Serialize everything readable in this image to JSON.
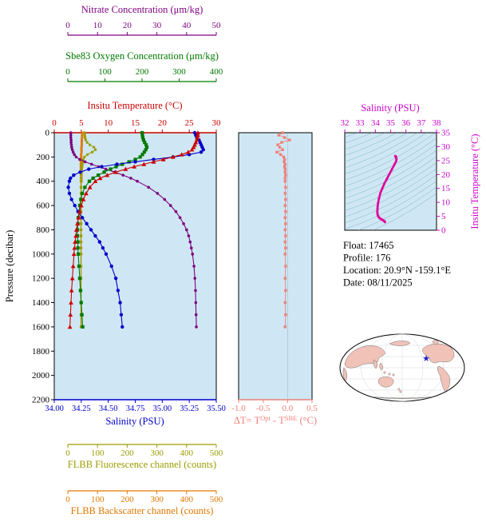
{
  "colors": {
    "nitrate": "#7d007d",
    "oxygen": "#007a00",
    "temperature": "#cc0000",
    "salinity": "#0000cc",
    "fluorescence": "#9c9c00",
    "backscatter": "#e07800",
    "delta": "#f08078",
    "ts_label": "#cc00cc",
    "ts_curve": "#e0009c",
    "contour": "#5f9ea8",
    "panel_bg": "#cfe7f4",
    "land": "#f0c2b8",
    "star": "#2020c0"
  },
  "axes": {
    "nitrate": {
      "title": "Nitrate Concentration (μm/kg)",
      "ticks": [
        0,
        10,
        20,
        30,
        40,
        50
      ]
    },
    "oxygen": {
      "title": "Sbe83 Oxygen Concentration (μm/kg)",
      "ticks": [
        0,
        100,
        200,
        300,
        400
      ]
    },
    "temperature": {
      "title": "Insitu Temperature (°C)",
      "ticks": [
        0,
        5,
        10,
        15,
        20,
        25,
        30
      ]
    },
    "pressure": {
      "title": "Pressure (decibar)",
      "ticks": [
        0,
        200,
        400,
        600,
        800,
        1000,
        1200,
        1400,
        1600,
        1800,
        2000,
        2200
      ]
    },
    "salinity": {
      "title": "Salinity (PSU)",
      "ticks": [
        "34.00",
        "34.25",
        "34.50",
        "34.75",
        "35.00",
        "35.25",
        "35.50"
      ]
    },
    "fluorescence": {
      "title": "FLBB Fluorescence channel (counts)",
      "ticks": [
        0,
        100,
        200,
        300,
        400,
        500
      ]
    },
    "backscatter": {
      "title": "FLBB Backscatter channel (counts)",
      "ticks": [
        0,
        100,
        200,
        300,
        400,
        500
      ]
    },
    "delta": {
      "title_parts": [
        "ΔT= T",
        "Opt",
        " - T",
        "SBE",
        " (°C)"
      ],
      "ticks": [
        "-1.0",
        "-0.5",
        "0.0",
        "0.5"
      ]
    },
    "ts_x": {
      "title": "Salinity (PSU)",
      "ticks": [
        32,
        33,
        34,
        35,
        36,
        37,
        38
      ]
    },
    "ts_y": {
      "title": "Insitu Temperature (°C)",
      "ticks": [
        0,
        5,
        10,
        15,
        20,
        25,
        30,
        35
      ]
    }
  },
  "info": {
    "lines": [
      {
        "id": "float",
        "label": "Float:",
        "value": "17465"
      },
      {
        "id": "profile",
        "label": "Profile:",
        "value": "176"
      },
      {
        "id": "location",
        "label": "Location:",
        "value": "20.9°N  -159.1°E"
      },
      {
        "id": "date",
        "label": "Date:",
        "value": "08/11/2025"
      }
    ]
  },
  "map": {
    "star_icon": "★"
  },
  "chart_data": {
    "type": "line",
    "description": "Argo float multi-panel vertical profiles vs pressure, deltaT panel, T-S diagram",
    "axis_ranges": {
      "temperature": [
        0,
        30
      ],
      "salinity": [
        34,
        35.5
      ],
      "oxygen": [
        0,
        400
      ],
      "nitrate": [
        0,
        50
      ],
      "flbb": [
        0,
        500
      ],
      "pressure": [
        0,
        2200
      ],
      "delta": [
        -1,
        0.5
      ],
      "ts_s": [
        32,
        38
      ],
      "ts_t": [
        0,
        35
      ]
    },
    "pressure_levels": [
      0,
      20,
      40,
      60,
      80,
      100,
      120,
      140,
      160,
      180,
      200,
      220,
      240,
      260,
      280,
      300,
      325,
      350,
      375,
      400,
      450,
      500,
      550,
      600,
      650,
      700,
      750,
      800,
      850,
      900,
      950,
      1000,
      1100,
      1200,
      1300,
      1400,
      1500,
      1600
    ],
    "profiles": {
      "temperature": {
        "label": "Insitu Temperature (°C)",
        "axis": "temperature",
        "marker": "triangle",
        "values": [
          26.6,
          26.6,
          26.5,
          26.4,
          26.2,
          26.0,
          25.8,
          25.5,
          24.8,
          23.6,
          22.0,
          20.2,
          18.4,
          16.6,
          14.8,
          13.2,
          11.4,
          9.8,
          8.5,
          7.6,
          6.6,
          5.9,
          5.4,
          5.0,
          4.7,
          4.5,
          4.3,
          4.1,
          4.0,
          3.85,
          3.75,
          3.65,
          3.5,
          3.35,
          3.2,
          3.1,
          3.0,
          2.9
        ]
      },
      "salinity": {
        "label": "Salinity (PSU)",
        "axis": "salinity",
        "marker": "circle",
        "values": [
          35.3,
          35.31,
          35.32,
          35.34,
          35.35,
          35.36,
          35.37,
          35.38,
          35.36,
          35.25,
          35.1,
          34.92,
          34.75,
          34.58,
          34.44,
          34.32,
          34.24,
          34.18,
          34.15,
          34.14,
          34.13,
          34.14,
          34.16,
          34.19,
          34.22,
          34.26,
          34.3,
          34.34,
          34.38,
          34.42,
          34.45,
          34.48,
          34.53,
          34.57,
          34.59,
          34.61,
          34.62,
          34.63
        ]
      },
      "oxygen": {
        "label": "Sbe83 Oxygen Concentration (μm/kg)",
        "axis": "oxygen",
        "marker": "square",
        "values": [
          200,
          201,
          202,
          204,
          207,
          211,
          213,
          210,
          206,
          201,
          195,
          182,
          165,
          147,
          130,
          115,
          98,
          82,
          68,
          58,
          46,
          39,
          35,
          32,
          30,
          28,
          27,
          26,
          26,
          27,
          27,
          28,
          30,
          32,
          34,
          36,
          38,
          40
        ]
      },
      "nitrate": {
        "label": "Nitrate Concentration (μm/kg)",
        "axis": "nitrate",
        "marker": "circle",
        "values": [
          1.0,
          1.0,
          1.0,
          1.1,
          1.1,
          1.2,
          1.3,
          1.5,
          1.8,
          2.2,
          2.8,
          4.0,
          5.8,
          8.0,
          10.4,
          12.8,
          15.8,
          18.6,
          21.2,
          23.4,
          27.2,
          30.2,
          32.6,
          34.6,
          36.4,
          37.8,
          39.0,
          40.0,
          40.7,
          41.2,
          41.6,
          42.0,
          42.5,
          42.8,
          43.0,
          43.1,
          43.2,
          43.3
        ]
      },
      "fluorescence": {
        "label": "FLBB Fluorescence channel (counts)",
        "axis": "flbb",
        "marker": "square",
        "values": [
          56,
          57,
          58,
          60,
          65,
          74,
          88,
          93,
          82,
          66,
          56,
          52,
          50,
          49,
          48,
          47,
          47,
          46,
          46,
          46,
          45,
          45,
          45,
          45,
          45,
          45,
          45,
          45,
          45,
          45,
          45,
          45,
          45,
          45,
          45,
          45,
          45,
          45
        ]
      },
      "backscatter": {
        "label": "FLBB Backscatter channel (counts)",
        "axis": "flbb",
        "marker": "square",
        "values": [
          49,
          48,
          48,
          47,
          47,
          47,
          46,
          46,
          46,
          45,
          45,
          45,
          44,
          44,
          44,
          44,
          44,
          44,
          44,
          44,
          44,
          44,
          44,
          44,
          44,
          44,
          44,
          44,
          44,
          44,
          44,
          44,
          44,
          44,
          44,
          44,
          44,
          44
        ]
      }
    },
    "delta_t": {
      "label": "ΔT = TOpt - TSBE (°C)",
      "marker": "square",
      "values": [
        -0.1,
        -0.18,
        -0.06,
        0.04,
        -0.12,
        -0.2,
        -0.16,
        -0.1,
        -0.22,
        -0.14,
        -0.08,
        -0.06,
        -0.07,
        -0.05,
        -0.06,
        -0.05,
        -0.05,
        -0.04,
        -0.05,
        -0.05,
        -0.04,
        -0.05,
        -0.04,
        -0.05,
        -0.04,
        -0.05,
        -0.04,
        -0.05,
        -0.04,
        -0.05,
        -0.04,
        -0.05,
        -0.04,
        -0.05,
        -0.04,
        -0.05,
        -0.04,
        -0.05
      ]
    },
    "ts_diagram": {
      "note": "magenta curve = temperature vs salinity pairs from the profiles above"
    }
  }
}
